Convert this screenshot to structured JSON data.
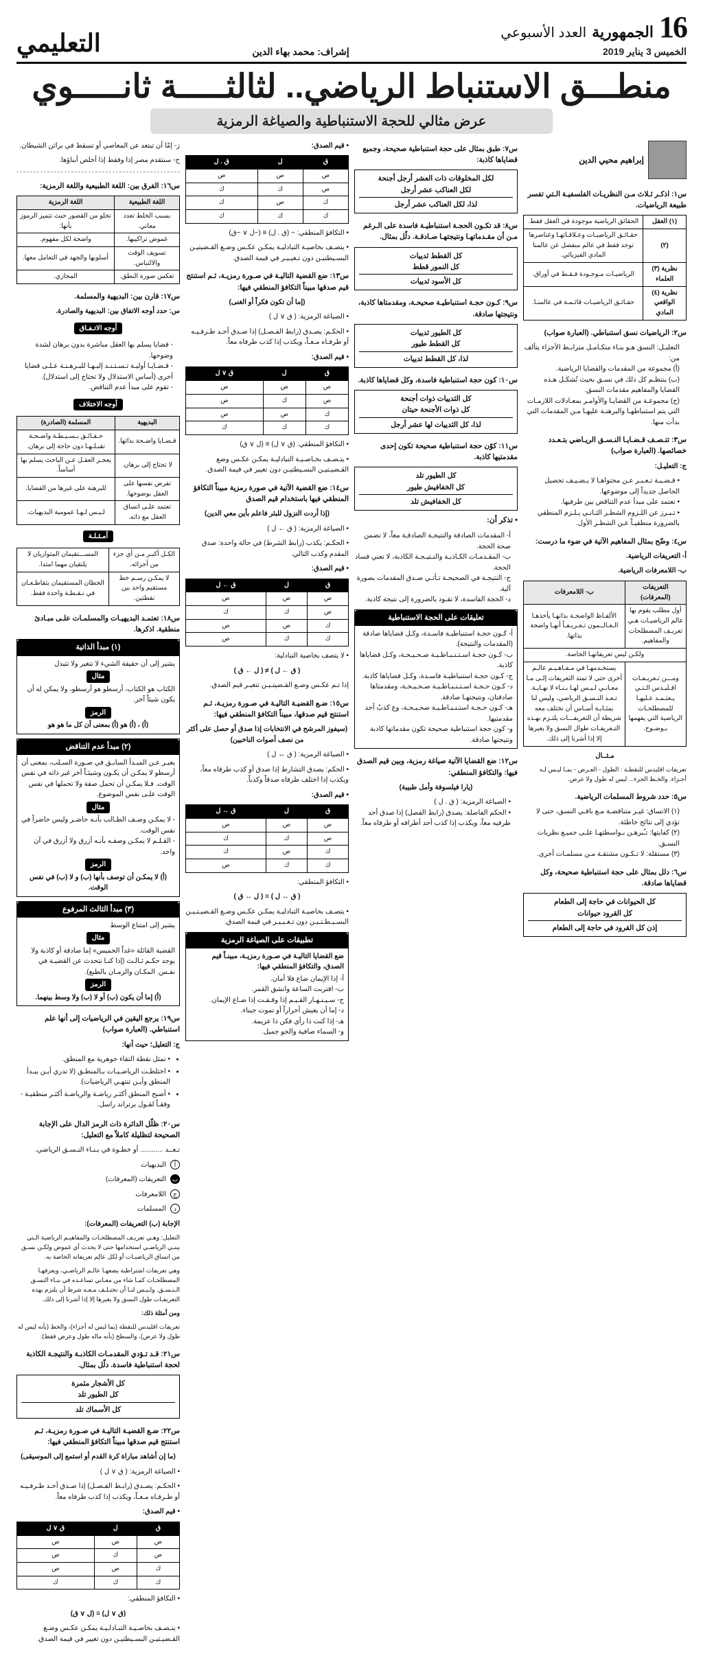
{
  "masthead": {
    "page_number": "16",
    "publication": "الجمهورية",
    "weekly_label": "العدد الأسبوعي",
    "date": "الخميس 3 يناير 2019",
    "supervisor_prefix": "إشراف: ",
    "supervisor": "محمد بهاء الدين",
    "section": "التعليمي"
  },
  "headline": {
    "main_a": "منطـــق الاستنباط الرياضي.. ",
    "main_b": "لثالثـــــة ثانـــــوي",
    "sub": "عرض مثالي للحجة الاستنباطية والصياغة الرمزية"
  },
  "author": {
    "name": "إبراهيم محيي الدين"
  },
  "colA": {
    "q1": "س١: اذكـر ثـلاث مـن النظريـات الفلسفيـة الـتي تفسر طبيعة الرياضيات.",
    "theories": {
      "head_a": "نظرية",
      "head_b": "",
      "rows": [
        [
          "(١) العقل",
          "الحقائق الرياضية موجودة في العقل فقط."
        ],
        [
          "(٢)",
          "حقـائـق الرياضيـات وعـلاقـاتهـا وعناصرها توجد فقط في عالم منفصل عن عالمنا المادي الفيزيائي."
        ],
        [
          "نظرية (٣) العلماء",
          "الرياضيـات مـوجـودة فـقـط في أوراق."
        ],
        [
          "نظرية (٤) الواقعي المادي",
          "حقـائـق الرياضيـات قائـمـة في عالمنـا."
        ]
      ]
    },
    "q2": "س٢: الرياضيات نسق استنباطي. (العبارة صواب)",
    "q2_body": [
      "التعليـل: النسق هـو بنـاء متكـامـل مترابـط الأجزاء يتألف من:",
      "(أ) مجموعة من المقدمات والقضايا الرياضية.",
      "(ب) ينتظـم كل ذلك في نسـق بحيث تُشكـل هـذه القضايا والمفاهيم مقدمات النسق.",
      "(ج) مجموعـة من القضايـا والأوامـر بمعـادلات اللازمـات التي يتم استنباطهـا والبرهنـة عليهـا مـن المقدمات التي بدأت منها."
    ],
    "q3": "س٣: تتـصـف قـضـايـا النـسـق الريـاضي بتـعـدد خصائصها. (العبارة صواب)",
    "q3_head": "ج: التعليـل:",
    "q3_body": [
      "• قـضـيـة تـعـبـر عـن محتواهـا لا يـضـيـف تحصيل الحاصل جديداً إلى موضوعها.",
      "• تعتمد على مبدأ عدم التناقض بين طرفيها.",
      "• تـبـرز عن اللـزوم الشطـر الثـانـي يـلـزم المنطقي بالضرورة منطقيـاً عـن الشطـر الأول."
    ],
    "q4": "س٤: وضّح بمثال المفاهيم الآتية في ضوء ما درست:",
    "q4_a": "أ- التعريفات الرياضية.",
    "q4_b": "ب- اللامعرفات الرياضية.",
    "defs2": {
      "head_a": "التعريفات (المعرفات)",
      "head_b": "ب- اللامعرفات",
      "rows": [
        [
          "أول مطلب يقوم بها عالم الرياضيـات هـي تعريـف المصطلحات والمفاهيم.",
          "الألفـاظ الواضحـة بذاتهـا يأخذهـا الـعـالــمون تـعـريـفـاً أنهـا واضحة بذاتها."
        ],
        "ولكـن ليس تعريفاتهـا الخاصة.",
        [
          "ومـــن تـعريـفـات اقـليـدس الـتـي يـعتـمـد عـليهـا للمصطلحـات الرياضية التي يفهمها بـوضـوح.",
          "يستخـدمهـا في مـفـاهـيـم عالـم أخرى حتى لا تمتد التعريفات إلـى مـا معـانـي لـيـس لهـا بـنـاء لا نهـايـة. تـعـد النـسـق الرياضي، وليس لنا بمثـابـة أسـاس أن نختلف معه شريطة أن التعريفـــات يلتـزم بهـذه التـعريفـات طوال النسق ولا يغيرها إلا إذا أشرنا إلى ذلك."
        ]
      ]
    },
    "q4_ex_head": "مـثــال",
    "q4_ex": "تعريفات اقليدس للنقطـة : الطول - العـرض - بمـا ليـس لـه أجـزاء. والخـط  الجزء... ليس له طول ولا عرض.",
    "q5": "س٥: حدد شروط المسلمات الرياضية.",
    "q5_body": [
      "(١) الاتساق: غيـر متناقضـة مـع باقـي النسق، حتى لا تؤدي إلى نتائج خاطئة.",
      "(٢) كفايتها: تـُبرهـن بـواسطتهـا علـى جميـع نظريات النسـق.",
      "(٣) مستقلة: لا تـكـون مشتقـة مـن مسلمـات أخرى."
    ],
    "q6": "س٦: دلل بمثال على حجة استنباطية صحيحة، وكل قضاياها صادقة.",
    "q6_box": {
      "l1": "كل الحيوانات في حاجة إلى الطعام",
      "l2": "كل القرود حيوانات",
      "l3": "إذن كل القرود في حاجة إلى الطعام"
    }
  },
  "colB": {
    "q7": "س٧: طبق بمثال على حجة استنباطية صحيحة، وجميع قضاياها كاذبة:",
    "q7_box": {
      "l1": "لكل المخلوقات ذات العشر أرجل أجنحة",
      "l2": "لكل العناكب عشر أرجل",
      "l3": "لذا، لكل العناكب عشر أرجل"
    },
    "q8": "س٨: قد تكـون الحجـة استنباطيـة فاسدة على الـرغم مـن أن مقـدماتهـا ونتيجتهـا صـادقـة. دلّل بمثال.",
    "q8_box": {
      "l1": "كل القطط ثدييات",
      "l2": "كل النمور قطط",
      "l3": "كل الأسود ثدييات"
    },
    "q9": "س٩: كـون حجـة استنباطيـة صحيحـة، ومقدمتاها كاذبة، ونتيجتها صادقة.",
    "q9_box": {
      "l1": "كل الطيور ثدييات",
      "l2": "كل القطط طيور",
      "l3": "لذا، كل القطط ثدييات"
    },
    "q10": "س١٠: كون حجة استنباطية فاسدة، وكل قضاياها كاذبة.",
    "q10_box": {
      "l1": "كل الثدييات ذوات أجنحة",
      "l2": "كل ذوات الأجنحة حيتان",
      "l3": "لذا، كل الثدييات لها عشر أرجل"
    },
    "q11": "س١١: كوّن حجة استنباطية صحيحة تكون إحدى مقدمتيها كاذبة.",
    "q11_box": {
      "l1": "كل الطيور تلد",
      "l2": "كل الخفافيش طيور",
      "l3": "كل الخفافيش تلد"
    },
    "rem_head": "• تذكر أن:",
    "rem": [
      "أ- المقدمات الصادقة والنتيجـة الصادقـة معاً، لا تضمن صحة الحجة.",
      "ب- المقـدمـات الكـاذبـة والنـتيـجـة الكاذبة، لا تعني فساد الحجة.",
      "ج- النتيجـة في الصحيحـة تـأتـي صـدق المقدمات بصورة آلية.",
      "د- الحجة الفاسدة، لا تقـود بالضرورة إلى نتيجة كاذبة."
    ],
    "app_head": "تعليقات على الحجة الاستنباطية",
    "app": [
      "أ- كـون حجـة استنباطيـة فاسـدة، وكـل قضاياها صادقة (المقدمات والنتيجة).",
      "ب- كـون حجـة اسـتـنـبـاطـيـة صـحـيـحـة، وكـل قضاياها كاذبة.",
      "ج- كـون حجـة استنباطيـة فاسـدة، وكـل قضاياها كاذبة.",
      "د- كـون حـجـة اسـتـنـبـاطـيـة صـحـيـحـة، ومقدمتاها صادقتان، ونتيجتهـا صادقة.",
      "هـ- كـون حـجـة استـنـبـاطـيـة صحـيـحـة، وع كذبٌ أحد مقدمتيها.",
      "و- كون حجة استنباطية صحيحة تكون مقدماتها كاذبة ونتيجتها صادقة."
    ],
    "q12": "س١٢: ضع القضايا الآتية صياغة رمزية، وبين قيم الصدق فيها: والتكافؤ المنطقي:",
    "q12_sub": "(يارا فيلسوفة وأمل طبيبة)",
    "q12_body": [
      "• الصياغة الرمزية: ( ق . ل )",
      "• الحكم الفاصلة: يصدق (رابط الفصل) إذا صدق أحد طرفيه معاً، ويكذب إذا كذب أحد أطرافه أو طرفاه معاً."
    ]
  },
  "colC": {
    "top_head": "• قيم الصدق:",
    "tt1": {
      "head": [
        "ق",
        "ل",
        "ق . ل"
      ],
      "rows": [
        [
          "ص",
          "ص",
          "ص"
        ],
        [
          "ص",
          "ك",
          "ك"
        ],
        [
          "ك",
          "ص",
          "ك"
        ],
        [
          "ك",
          "ك",
          "ك"
        ]
      ]
    },
    "eq1": "• التكافؤ المنطقي: ~ (ق . ل) ≡ (~ل ∨ ~ق)",
    "eq1_b": "• يتصـف بخاصيـة التبادليـة يمكـن عكـس وضـع القـضيتيـن البسـيطتيـن دون تـغيـيـر في قيمة الصدق.",
    "q13": "س١٣: ضع القضية التاليـة في صـورة رمزيـة، ثـم استنتج قيم صدقها مبيناً التكافؤ المنطقي فيها:",
    "q13_sub": "(إما أن تكون فكراً أو الغنى)",
    "q13_body": [
      "• الصياغة الرمزية: ( ق ∨ ل )",
      "• الحكـم: يصـدق (رابط الفـصـل) إذا صـدق أحـد طـرفـيـه أو طرفـاه مـعـاً، ويكذب إذا كذب طرفاه معاً.",
      "• قيم الصدق:"
    ],
    "tt2": {
      "head": [
        "ق",
        "ل",
        "ق ∨ ل"
      ],
      "rows": [
        [
          "ص",
          "ص",
          "ص"
        ],
        [
          "ص",
          "ك",
          "ص"
        ],
        [
          "ك",
          "ص",
          "ص"
        ],
        [
          "ك",
          "ك",
          "ك"
        ]
      ]
    },
    "eq2": "• التكافؤ المنطقي: (ق ∨ ل) ≡ (ل ∨ ق)",
    "eq2_b": "• يتـصـف بخـاصـيـة التبادليـة يمكـن عكـس وضع القـضيـتيـن البسـيطتيـن دون تغيير في قيمة الصدق.",
    "q14": "س١٤: ضع القضية الآتية في صورة رمزية مبيناً التكافؤ المنطقي فيها باستخدام قيم الصدق",
    "q14_sub": "(إذا أردت النزول للبئر فاعلم بأين معي الدين)",
    "q14_body": [
      "• الصياغة الرمزية: ( ق ← ل )",
      "• الحكـم: يكذب (رابط الشرط) في حالة واحدة: صدق المقدم وكذب التالي.",
      "• قيم الصدق:"
    ],
    "tt3": {
      "head": [
        "ق",
        "ل",
        "ق ← ل"
      ],
      "rows": [
        [
          "ص",
          "ص",
          "ص"
        ],
        [
          "ص",
          "ك",
          "ك"
        ],
        [
          "ك",
          "ص",
          "ص"
        ],
        [
          "ك",
          "ك",
          "ص"
        ]
      ]
    },
    "eq3": "• لا يتصف بخاصية التبادلية:",
    "eq3_b": "( ق ← ل ) ≠ ( ل ← ق )",
    "eq3_c": "إذا تـم عكـس وضـع القـضيتـيـن تتغيـر قيم الصدق.",
    "q15": "س١٥: ضـع القضيـة التاليـة في صـورة رمزيـة، ثـم استنتج قيم صدقها، مبيناً التكافؤ المنطقي فيها:",
    "q15_sub": "(سيفوز المرشح في الانتخابات إذا صدق أو حصل على أكثر من نصف أصوات الناخبين)",
    "q15_body": [
      "• الصياغة الرمزية: ( ق ↔ ل )",
      "• الحكم: يصدق التشارط إذا صدق أو كذب طرفاه معاً، ويكذب إذا اختلف طرفاه صدقاً وكذباً.",
      "• قيم الصدق:"
    ],
    "tt4": {
      "head": [
        "ق",
        "ل",
        "ق ↔ ل"
      ],
      "rows": [
        [
          "ص",
          "ص",
          "ص"
        ],
        [
          "ص",
          "ك",
          "ك"
        ],
        [
          "ك",
          "ص",
          "ك"
        ],
        [
          "ك",
          "ك",
          "ص"
        ]
      ]
    },
    "eq4": "• التكافؤ المنطقي:",
    "eq4_b": "( ق ↔ ل ) ≡ ( ل ↔ ق )",
    "eq4_c": "• يتصـف بخاصيـة التبادليـة يمكـن عكـس وضـع القـضيـتـيـن البسـيـطـتـيـن دون تـغـيـيـر في قيمة الصدق.",
    "app2_head": "تطبيقات على الصياغة الرمزية",
    "app2_intro": "ضع القضايا التاليـة في صـورة رمزيـة، مبينـاً قيم الصدق، والتكافؤ المنطقي فيها:",
    "app2": [
      "أ- إذا الإيمان ضاع فلا أمان.",
      "ب- اقتربت الساعة وانشق القمر.",
      "ج- سـيـنـهـار القـيـم إذا وقـفـت إذا ضـاع الإيمان.",
      "د- إما أن يعيش أحراراً أو تموت جبناء.",
      "هـ- إذا كنت ذا رأي فكن ذا عزيمة.",
      "و- السماء صافية والجو جميل."
    ]
  },
  "colD": {
    "d1": [
      "ز- إمّا أن تبتعد عن المعاصي أو تسقط في براثن الشيطان.",
      "ح- سنتقدم مصر إذا وفقط إذا أخلص أبناؤها."
    ],
    "q16": "س١٦: الفرق بين: اللغة الطبيعية واللغة الرمزية:",
    "t16": {
      "head_a": "اللغة الطبيعية",
      "head_b": "اللغة الرمزية",
      "rows": [
        [
          "بسبب الخلط تعدد معاني.",
          "تخلو من القصور حيث تتميز الرموز بأنها:"
        ],
        [
          "غموض تراكيبها.",
          "واضحة لكل مفهوم."
        ],
        [
          "تسويف الوقت والالتباس.",
          "أسلوبها والجهد في التعامل معها."
        ],
        [
          "تعكس صورة النطق.",
          "المجازي."
        ]
      ]
    },
    "q17": "س١٧: قارن بين: البديهية والمسلمة.",
    "q17b": "س: حدد أوجه الاتفاق بين: البديهية والصادرة.",
    "agree_head": "أوجه الاتـفـاق",
    "agree": [
      "- قضايا يسلم بها العقل مباشرة بدون برهان لشدة وضوحها.",
      "- قـضـايـا أوليـة تـسـتـنـد إليـهـا للبـرهـنـة عـلـى قضايا أخرى (أساس الاستدلال ولا تحتاج إلى استدلال).",
      "- تقوم على مبدأ عدم التناقض."
    ],
    "diff_head": "أوجه الاختلاف",
    "t_diff": {
      "head_a": "البديهية",
      "head_b": "المسلمة (الصادرة)",
      "rows": [
        [
          "قـضـايا واضـحة بذاتها.",
          "حـقـائـق بـسـيـطـة واضـحـة تقبـلـهـا دون حاجة إلى برهان."
        ],
        [
          "لا تحتاج إلى برهان.",
          "يعجـز العقـل عـن الباحث يسلم بها أساساً."
        ],
        [
          "تفرض نفسها على العقل بوضوحها.",
          "للبرهنة على غيرها من القضايا."
        ],
        [
          "تعتمد علـى اتساق العقل مع ذاته.",
          "لـيـس لـهـا عمومية البديهيات."
        ]
      ]
    },
    "ex_head": "أمـثـلـة",
    "t_ex": {
      "rows": [
        [
          "الكـل أكبـر مـن أي جزء من أجزائه.",
          "المســـتقيمان المتوازيان لا يلتقيان مهما امتدا."
        ],
        [
          "لا يمكـن رسـم خط مستقيم واحد بين نقطتين.",
          "الخطان المستقيمان يتقاطـعـان في نـقـطـة واحدة فقط."
        ]
      ]
    },
    "q18": "س١٨: تعتمـد البديهيـات والمسلمـات علـى مبـادئ منطقية. اذكرها.",
    "p1_head": "(١) مبدأ الذاتية",
    "p1_a": "يشير إلى أن حقيقة الشيء لا تتغير ولا تتبدل",
    "p1_ex_h": "مثال",
    "p1_ex": "الكتاب هو الكتاب، أرسطو هو أرسطو، ولا يمكن له أن يكون شيئاً آخر.",
    "p1_sym_h": "الرمز",
    "p1_sym": "(أ) ، (أ) هو (أ) بمعنى أن كل ما هو هو",
    "p2_head": "(٢) مبدأ عدم التناقض",
    "p2_a": "يعبـر عـن المبـدأ السابـق في صـورة السـلب، بمعنى أن أرسطو لا يمكـن أن يكـون وشيئـاً آخر غير ذاته في نفس الوقت. فـلا يمكـن أن تحمل صفة ولا تحملها في نفس الوقت علـى نفس الموضوع.",
    "p2_ex_h": "مثال",
    "p2_ex": [
      "- لا يمكـن وصـف الطـالب بأنـه حاضـر وليس حاضراً في نفس الوقت.",
      "- القـلـم لا يمكـن وصفـه بأنـه أزرق ولا أزرق في آن واحد."
    ],
    "p2_sym_h": "الرمز",
    "p2_sym": "(أ) لا يمكـن أن توصف بأنها (ب) و لا (ب) في نفس الوقت.",
    "p3_head": "(٣) مبدأ الثالث المرفوع",
    "p3_a": "يشير إلى امتناع الوسط",
    "p3_ex_h": "مثال",
    "p3_ex": "القضية القائلة «غداً الخميس» إما صادقة أو كاذبة ولا يوجد حكـم ثـالـث (إذا كنـا نتحدث عن القضيـة في نفـس. المكـان والزمـان بالطبع).",
    "p3_sym_h": "الرمز",
    "p3_sym": "(أ) إما أن يكون (ب) أو لا (ب) ولا وسط بينهما.",
    "q19": "س١٩: يرجع اليقين في الرياضيات إلى أنها علم استنباطي. (العبارة صواب)",
    "q19_head": "ج: التعليل؛ حيث أنها:",
    "q19_body": [
      "• تمثل نقطة التقاء جوهرية مع المنطق.",
      "• اختلطـت الرياضـيـات بـالمنطـق (لا تدري أيـن يبـدأ المنطق وأيـن تنتهـي الرياضيات).",
      "• أصبح المنطق أكثـر رياضـة والرياضـة أكثـر منطقيـة - وفقـاً لقـول برتراند راسل."
    ],
    "q20": "س٢٠: ظلّل الدائرة ذات الرمز الدال على الإجابة الصحيحة لتظليلة كاملاً مع التعليل:",
    "q20_sub": "تـعــد ............ أو خطـوة في بـنـاء النـسـق الرياضي.",
    "opts": [
      "البديهيات",
      "التعريفات (المعرفات)",
      "اللامعرفات",
      "المسلمات"
    ],
    "q20_exp_head": "الإجابة (ب) التعريفات (المعرفات):",
    "q20_exp": [
      "التعليل: وهـي تعريـف المصطلحـات والمفاهيـم الرياضية الـتي يبنـي الرياضـي استخدامها حتى لا يحدث أي غموض ولكـن نسـق من اتساق الرياضيـات أو لكل عالِم تعريفاته الخاصة به.",
      "وهي تعريفات اشتراطية يضعهـا عالـم الرياضـي، ويعرفهـا المصطلحـات كمـا شاء من معـاني تساعـده في بنـاء النسـق الـنـسـق. ولـيـس لنـا أن نختـلـف مـعـه شرط أن يلتزم بهذه التعريفـات طول النسق ولا يغيرها إلا إذا أشرنا إلى ذلك."
    ],
    "q20_ex2_h": "ومن أمثلة ذلك:",
    "q20_ex2": "تعريفات اقليدس للنقطة (بما ليس له أجزاء)، والخط (بأنه ليس له طول ولا عرض)، والسطح (بأنه ماله طول وعرض فقط).",
    "q21": "س٢١: قـد تـؤدي المقدمـات الكاذبـة والنتيجـة الكاذبة لحجة استنباطية فاسدة. دلّل بمثال.",
    "q21_box": {
      "l1": "كل الأشجار مثمرة",
      "l2": "كل الطيور تلد",
      "l3": "كل الأسماك تلد"
    },
    "q22": "س٢٢: ضـع القضيـة التاليـة في صـورة رمزيـة، ثـم استنتج قيم صدقها مبيناً التكافؤ المنطقي فيها:",
    "q22_sub": "(ما إن أشاهد مباراة كرة القدم أو استمع إلى الموسيقى)",
    "q22_body": [
      "• الصياغة الرمزية: ( ق ∨ ل )",
      "• الحكـم: يصـدق (رابـط الفـصـل) إذا صـدق أحـد طـرفـيـه أو طـرفـاه مـعـاً، ويكذب إذا كذب طرفاه معاً.",
      "• قيم الصدق:"
    ],
    "tt5": {
      "head": [
        "ق",
        "ل",
        "ق ∨ ل"
      ],
      "rows": [
        [
          "ص",
          "ص",
          "ص"
        ],
        [
          "ص",
          "ك",
          "ص"
        ],
        [
          "ك",
          "ص",
          "ص"
        ],
        [
          "ك",
          "ك",
          "ك"
        ]
      ]
    },
    "eq5": "• التكافؤ المنطقي:",
    "eq5_b": "(ق ∨ ل) ≡ (ل ∨ ق)",
    "eq5_c": "• يتـصـف بخاصـيـة التبـادلـيـة يمكـن عكـس وضـع القـضيـتيـن البسـيطتيـن دون تغيير في قيمة الصدق."
  },
  "colors": {
    "text": "#111111",
    "bg": "#ffffff",
    "border": "#000000",
    "shade": "#e8e8e8"
  }
}
